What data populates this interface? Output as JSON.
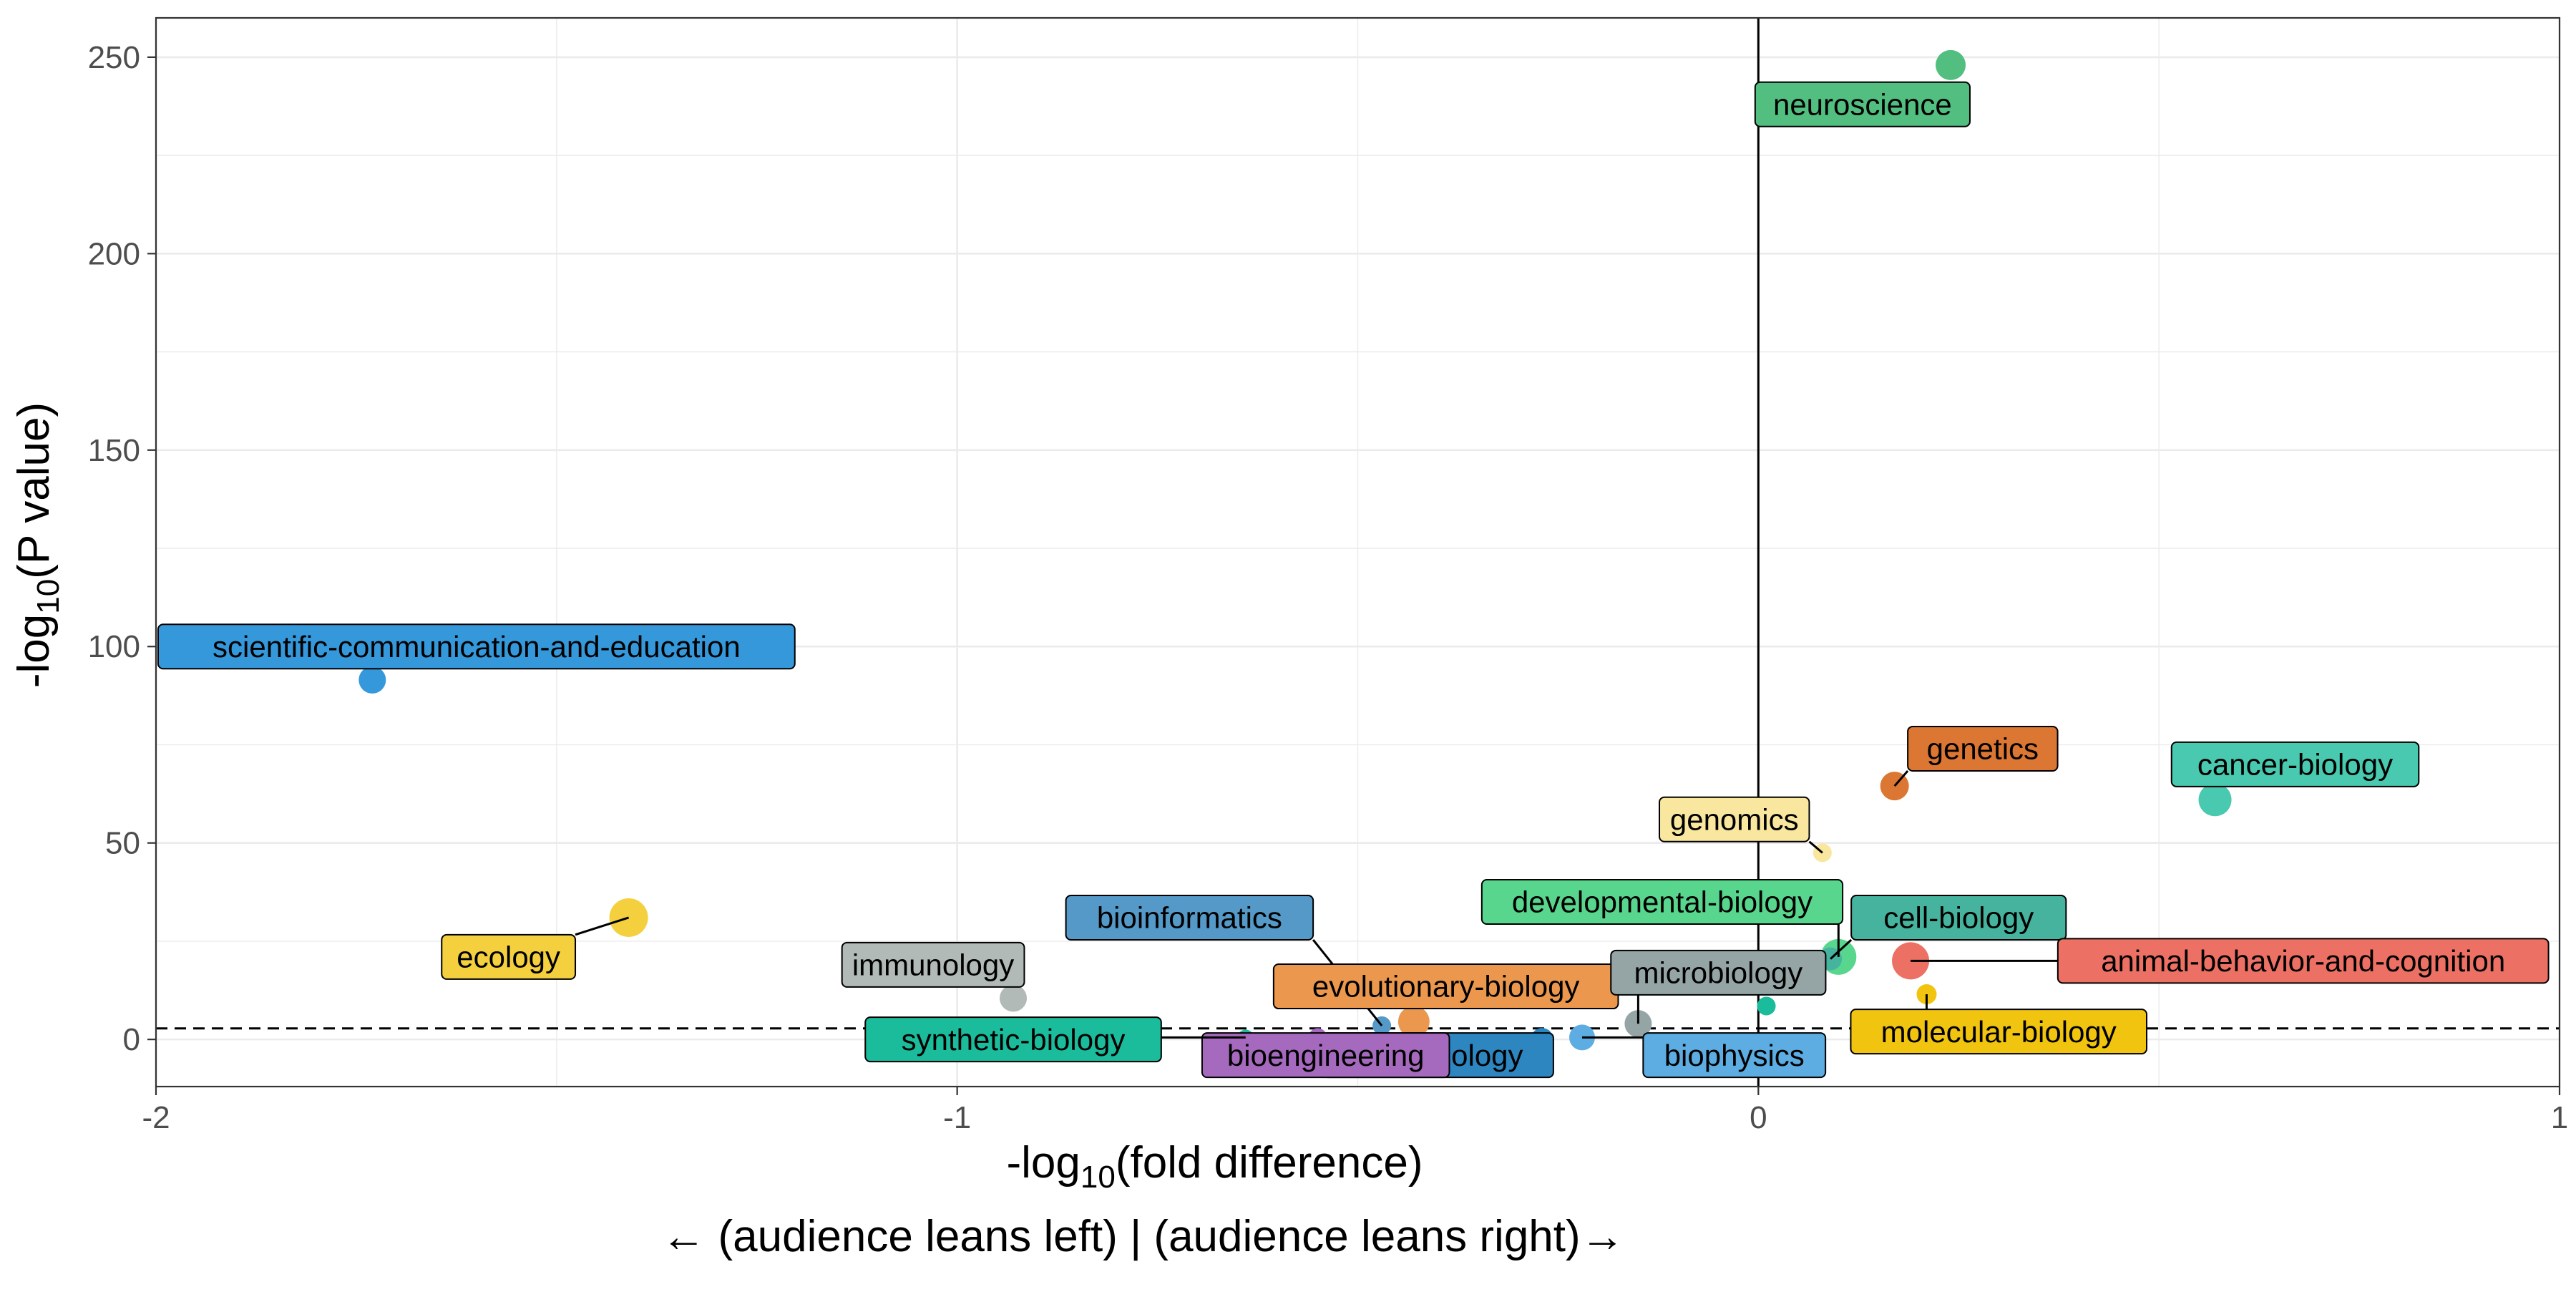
{
  "chart_data": {
    "type": "scatter",
    "title": "",
    "xlabel_prefix": "-log",
    "xlabel_sub": "10",
    "xlabel_suffix": "(fold difference)",
    "xlabel_note": "← (audience leans left) | (audience leans right)→",
    "ylabel_prefix": "-log",
    "ylabel_sub": "10",
    "ylabel_suffix": "(P value)",
    "xlim": [
      -2,
      1
    ],
    "ylim": [
      -12,
      260
    ],
    "x_ticks": [
      -2,
      -1,
      0,
      1
    ],
    "x_tick_labels": [
      "-2",
      "-1",
      "0",
      "1"
    ],
    "y_ticks": [
      0,
      50,
      100,
      150,
      200,
      250
    ],
    "y_tick_labels": [
      "0",
      "50",
      "100",
      "150",
      "200",
      "250"
    ],
    "grid": true,
    "vline_x": 0,
    "hline_y": 2.8,
    "legend": "none",
    "points": [
      {
        "label": "neuroscience",
        "x": 0.24,
        "y": 248,
        "size": 21,
        "color": "#52be80",
        "lx": 0.13,
        "ly": 238,
        "txt": "#000000"
      },
      {
        "label": "scientific-communication-and-education",
        "x": -1.73,
        "y": 91.5,
        "size": 19,
        "color": "#3498db",
        "lx": -1.6,
        "ly": 100,
        "txt": "#000000"
      },
      {
        "label": "genetics",
        "x": 0.17,
        "y": 64.5,
        "size": 20,
        "color": "#dc7633",
        "lx": 0.28,
        "ly": 74,
        "txt": "#000000"
      },
      {
        "label": "cancer-biology",
        "x": 0.57,
        "y": 61,
        "size": 23,
        "color": "#48c9b0",
        "lx": 0.67,
        "ly": 70,
        "txt": "#000000"
      },
      {
        "label": "genomics",
        "x": 0.08,
        "y": 47.5,
        "size": 13,
        "color": "#f9e79f",
        "lx": -0.03,
        "ly": 56,
        "txt": "#000000"
      },
      {
        "label": "ecology",
        "x": -1.41,
        "y": 31,
        "size": 27,
        "color": "#f4d03f",
        "lx": -1.56,
        "ly": 21,
        "txt": "#000000"
      },
      {
        "label": "developmental-biology",
        "x": 0.1,
        "y": 21,
        "size": 25,
        "color": "#58d68d",
        "lx": -0.12,
        "ly": 35,
        "txt": "#000000"
      },
      {
        "label": "cell-biology",
        "x": 0.09,
        "y": 20.5,
        "size": 16,
        "color": "#45b39d",
        "lx": 0.25,
        "ly": 31,
        "txt": "#000000"
      },
      {
        "label": "animal-behavior-and-cognition",
        "x": 0.19,
        "y": 20,
        "size": 26,
        "color": "#ec7063",
        "lx": 0.68,
        "ly": 20,
        "txt": "#000000"
      },
      {
        "label": "immunology",
        "x": -0.93,
        "y": 10.5,
        "size": 19,
        "color": "#b2bab8",
        "lx": -1.03,
        "ly": 19,
        "txt": "#000000"
      },
      {
        "label": "bioinformatics",
        "x": -0.47,
        "y": 3.5,
        "size": 13,
        "color": "#5499c7",
        "lx": -0.71,
        "ly": 31,
        "txt": "#000000"
      },
      {
        "label": "evolutionary-biology",
        "x": -0.43,
        "y": 4.5,
        "size": 22,
        "color": "#eb984e",
        "lx": -0.39,
        "ly": 13.5,
        "txt": "#000000"
      },
      {
        "label": "microbiology",
        "x": -0.15,
        "y": 4,
        "size": 19,
        "color": "#95a5a6",
        "lx": -0.05,
        "ly": 17,
        "txt": "#000000"
      },
      {
        "label": "molecular-biology",
        "x": 0.21,
        "y": 11.5,
        "size": 14,
        "color": "#f1c40f",
        "lx": 0.3,
        "ly": 2,
        "txt": "#000000"
      },
      {
        "label": "biophysics",
        "x": -0.22,
        "y": 0.5,
        "size": 18,
        "color": "#5dade2",
        "lx": -0.03,
        "ly": -4,
        "txt": "#000000"
      },
      {
        "label": "plant-biology",
        "x": -0.27,
        "y": 0,
        "size": 16,
        "color": "#2e86c1",
        "lx": -0.4,
        "ly": -4,
        "txt": "#000000"
      },
      {
        "label": "bioengineering",
        "x": -0.55,
        "y": 0.5,
        "size": 13,
        "color": "#a569bd",
        "lx": -0.54,
        "ly": -4,
        "txt": "#000000"
      },
      {
        "label": "synthetic-biology",
        "x": -0.64,
        "y": 0.5,
        "size": 11,
        "color": "#1abc9c",
        "lx": -0.93,
        "ly": 0,
        "txt": "#000000"
      },
      {
        "label": "",
        "x": 0.01,
        "y": 8.5,
        "size": 13,
        "color": "#1abc9c",
        "lx": 0.01,
        "ly": 8.5,
        "txt": "#000000"
      }
    ]
  }
}
